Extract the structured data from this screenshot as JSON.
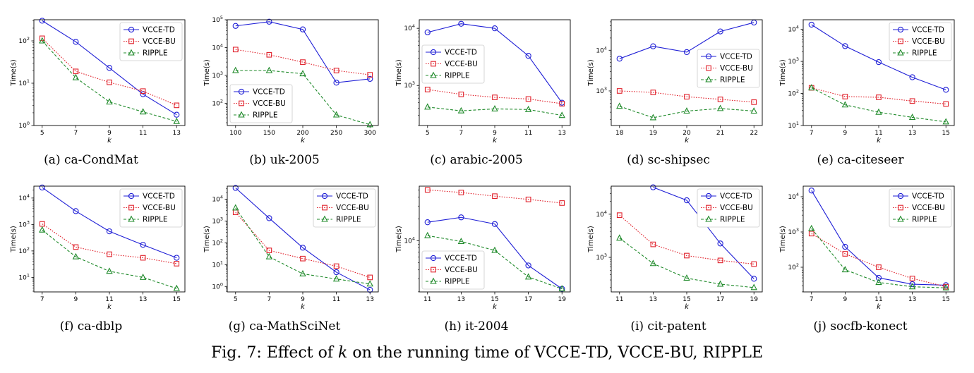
{
  "figure_caption": {
    "prefix": "Fig. 7: Effect of ",
    "k": "k",
    "suffix": " on the running time of VCCE-TD, VCCE-BU, RIPPLE"
  },
  "series_styles": {
    "VCCE-TD": {
      "color": "#1f1fd6",
      "marker": "circle",
      "dash": "solid"
    },
    "VCCE-BU": {
      "color": "#e0212b",
      "marker": "square",
      "dash": "dotted"
    },
    "RIPPLE": {
      "color": "#1f8a2a",
      "marker": "triangle",
      "dash": "dashed"
    }
  },
  "chart_data": [
    {
      "caption": "(a)  ca-CondMat",
      "type": "line",
      "xlabel": "k",
      "ylabel": "Time(s)",
      "yscale": "log",
      "x": [
        5,
        7,
        9,
        11,
        13
      ],
      "ylim_exp": [
        0,
        2.5
      ],
      "yticks": [
        {
          "label": "10",
          "sup": "0",
          "exp": 0
        },
        {
          "label": "10",
          "sup": "1",
          "exp": 1
        },
        {
          "label": "10",
          "sup": "2",
          "exp": 2
        }
      ],
      "legend": "top-right",
      "series": [
        {
          "name": "VCCE-TD",
          "values": [
            300,
            95,
            23,
            5.5,
            1.8
          ]
        },
        {
          "name": "VCCE-BU",
          "values": [
            115,
            19,
            10.5,
            6.5,
            3
          ]
        },
        {
          "name": "RIPPLE",
          "values": [
            100,
            13.5,
            3.6,
            2.1,
            1.25
          ]
        }
      ]
    },
    {
      "caption": "(b)  uk-2005",
      "type": "line",
      "xlabel": "k",
      "ylabel": "Time(s)",
      "yscale": "log",
      "x": [
        100,
        150,
        200,
        250,
        300
      ],
      "ylim_exp": [
        1.2,
        5
      ],
      "yticks": [
        {
          "label": "10",
          "sup": "2",
          "exp": 2
        },
        {
          "label": "10",
          "sup": "3",
          "exp": 3
        },
        {
          "label": "10",
          "sup": "4",
          "exp": 4
        },
        {
          "label": "10",
          "sup": "5",
          "exp": 5
        }
      ],
      "legend": "bottom-left",
      "series": [
        {
          "name": "VCCE-TD",
          "values": [
            60000,
            85000,
            45000,
            550,
            750
          ]
        },
        {
          "name": "VCCE-BU",
          "values": [
            8500,
            5500,
            3000,
            1500,
            1050
          ]
        },
        {
          "name": "RIPPLE",
          "values": [
            1500,
            1500,
            1150,
            38,
            17
          ]
        }
      ]
    },
    {
      "caption": "(c)  arabic-2005",
      "type": "line",
      "xlabel": "k",
      "ylabel": "Time(s)",
      "yscale": "log",
      "x": [
        5,
        7,
        9,
        11,
        13
      ],
      "ylim_exp": [
        2.3,
        4.15
      ],
      "yticks": [
        {
          "label": "10",
          "sup": "3",
          "exp": 3
        },
        {
          "label": "10",
          "sup": "4",
          "exp": 4
        }
      ],
      "legend": "middle-left",
      "series": [
        {
          "name": "VCCE-TD",
          "values": [
            8500,
            12000,
            10000,
            3300,
            500
          ]
        },
        {
          "name": "VCCE-BU",
          "values": [
            850,
            700,
            620,
            580,
            480
          ]
        },
        {
          "name": "RIPPLE",
          "values": [
            420,
            360,
            390,
            380,
            300
          ]
        }
      ]
    },
    {
      "caption": "(d)  sc-shipsec",
      "type": "line",
      "xlabel": "k",
      "ylabel": "Time(s)",
      "yscale": "log",
      "x": [
        18,
        19,
        20,
        21,
        22
      ],
      "ylim_exp": [
        2.15,
        4.75
      ],
      "yticks": [
        {
          "label": "10",
          "sup": "3",
          "exp": 3
        },
        {
          "label": "10",
          "sup": "4",
          "exp": 4
        }
      ],
      "legend": "middle-right",
      "series": [
        {
          "name": "VCCE-TD",
          "values": [
            6200,
            12500,
            9000,
            29000,
            48000
          ]
        },
        {
          "name": "VCCE-BU",
          "values": [
            1000,
            920,
            720,
            620,
            530
          ]
        },
        {
          "name": "RIPPLE",
          "values": [
            420,
            220,
            320,
            370,
            320
          ]
        }
      ]
    },
    {
      "caption": "(e)  ca-citeseer",
      "type": "line",
      "xlabel": "k",
      "ylabel": "Time(s)",
      "yscale": "log",
      "x": [
        7,
        9,
        11,
        13,
        15
      ],
      "ylim_exp": [
        1,
        4.3
      ],
      "yticks": [
        {
          "label": "10",
          "sup": "1",
          "exp": 1
        },
        {
          "label": "10",
          "sup": "2",
          "exp": 2
        },
        {
          "label": "10",
          "sup": "3",
          "exp": 3
        },
        {
          "label": "10",
          "sup": "4",
          "exp": 4
        }
      ],
      "legend": "top-right",
      "series": [
        {
          "name": "VCCE-TD",
          "values": [
            14000,
            3000,
            950,
            320,
            130
          ]
        },
        {
          "name": "VCCE-BU",
          "values": [
            150,
            80,
            76,
            58,
            47
          ]
        },
        {
          "name": "RIPPLE",
          "values": [
            150,
            44,
            26,
            18,
            13
          ]
        }
      ]
    },
    {
      "caption": "(f)  ca-dblp",
      "type": "line",
      "xlabel": "k",
      "ylabel": "Time(s)",
      "yscale": "log",
      "x": [
        7,
        9,
        11,
        13,
        15
      ],
      "ylim_exp": [
        0.45,
        4.45
      ],
      "yticks": [
        {
          "label": "10",
          "sup": "1",
          "exp": 1
        },
        {
          "label": "10",
          "sup": "2",
          "exp": 2
        },
        {
          "label": "10",
          "sup": "3",
          "exp": 3
        },
        {
          "label": "10",
          "sup": "4",
          "exp": 4
        }
      ],
      "legend": "top-right",
      "series": [
        {
          "name": "VCCE-TD",
          "values": [
            25000,
            3200,
            550,
            170,
            55
          ]
        },
        {
          "name": "VCCE-BU",
          "values": [
            1050,
            140,
            75,
            55,
            33
          ]
        },
        {
          "name": "RIPPLE",
          "values": [
            620,
            60,
            17,
            10,
            3.8
          ]
        }
      ]
    },
    {
      "caption": "(g)  ca-MathSciNet",
      "type": "line",
      "xlabel": "k",
      "ylabel": "Time(s)",
      "yscale": "log",
      "x": [
        5,
        7,
        9,
        11,
        13
      ],
      "ylim_exp": [
        -0.25,
        4.6
      ],
      "yticks": [
        {
          "label": "10",
          "sup": "0",
          "exp": 0
        },
        {
          "label": "10",
          "sup": "1",
          "exp": 1
        },
        {
          "label": "10",
          "sup": "2",
          "exp": 2
        },
        {
          "label": "10",
          "sup": "3",
          "exp": 3
        },
        {
          "label": "10",
          "sup": "4",
          "exp": 4
        }
      ],
      "legend": "top-right",
      "series": [
        {
          "name": "VCCE-TD",
          "values": [
            33000,
            1350,
            60,
            4.5,
            0.7
          ]
        },
        {
          "name": "VCCE-BU",
          "values": [
            2500,
            45,
            19,
            8.5,
            2.6
          ]
        },
        {
          "name": "RIPPLE",
          "values": [
            4000,
            23,
            3.8,
            2.2,
            1.3
          ]
        }
      ]
    },
    {
      "caption": "(h)  it-2004",
      "type": "line",
      "xlabel": "k",
      "ylabel": "Time(s)",
      "yscale": "log",
      "x": [
        11,
        13,
        15,
        17,
        19
      ],
      "ylim_exp": [
        3.3,
        4.75
      ],
      "yticks": [
        {
          "label": "10",
          "sup": "4",
          "exp": 4
        }
      ],
      "legend": "bottom-left",
      "series": [
        {
          "name": "VCCE-TD",
          "values": [
            18000,
            21000,
            17000,
            4600,
            2200
          ]
        },
        {
          "name": "VCCE-BU",
          "values": [
            50000,
            46000,
            41000,
            37000,
            33000
          ]
        },
        {
          "name": "RIPPLE",
          "values": [
            11800,
            9800,
            7400,
            3200,
            2200
          ]
        }
      ]
    },
    {
      "caption": "(i)  cit-patent",
      "type": "line",
      "xlabel": "k",
      "ylabel": "Time(s)",
      "yscale": "log",
      "x": [
        11,
        13,
        15,
        17,
        19
      ],
      "ylim_exp": [
        2.2,
        4.65
      ],
      "yticks": [
        {
          "label": "10",
          "sup": "3",
          "exp": 3
        },
        {
          "label": "10",
          "sup": "4",
          "exp": 4
        }
      ],
      "legend": "top-right",
      "series": [
        {
          "name": "VCCE-TD",
          "values": [
            null,
            42000,
            21000,
            2100,
            320
          ]
        },
        {
          "name": "VCCE-BU",
          "values": [
            9500,
            2000,
            1100,
            850,
            700
          ]
        },
        {
          "name": "RIPPLE",
          "values": [
            2800,
            720,
            330,
            240,
            200
          ]
        }
      ]
    },
    {
      "caption": "(j)  socfb-konect",
      "type": "line",
      "xlabel": "k",
      "ylabel": "Time(s)",
      "yscale": "log",
      "x": [
        7,
        9,
        11,
        13,
        15
      ],
      "ylim_exp": [
        1.3,
        4.3
      ],
      "yticks": [
        {
          "label": "10",
          "sup": "2",
          "exp": 2
        },
        {
          "label": "10",
          "sup": "3",
          "exp": 3
        },
        {
          "label": "10",
          "sup": "4",
          "exp": 4
        }
      ],
      "legend": "top-right",
      "series": [
        {
          "name": "VCCE-TD",
          "values": [
            15000,
            380,
            50,
            33,
            31
          ]
        },
        {
          "name": "VCCE-BU",
          "values": [
            900,
            240,
            100,
            48,
            28
          ]
        },
        {
          "name": "RIPPLE",
          "values": [
            1250,
            85,
            37,
            28,
            26
          ]
        }
      ]
    }
  ]
}
